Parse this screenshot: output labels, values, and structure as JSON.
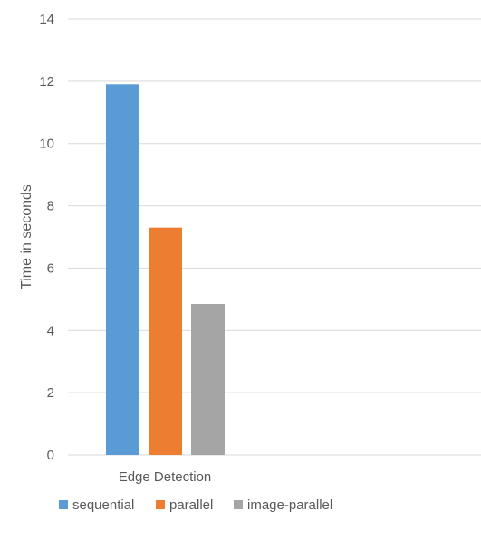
{
  "chart_data": {
    "type": "bar",
    "title": "",
    "xlabel": "",
    "ylabel": "Time in seconds",
    "ylim": [
      0,
      14
    ],
    "yticks": [
      0,
      2,
      4,
      6,
      8,
      10,
      12,
      14
    ],
    "grid": true,
    "legend_position": "bottom-left",
    "categories": [
      "Edge Detection"
    ],
    "series": [
      {
        "name": "sequential",
        "color": "#5b9bd5",
        "values": [
          11.9
        ]
      },
      {
        "name": "parallel",
        "color": "#ed7d31",
        "values": [
          7.3
        ]
      },
      {
        "name": "image-parallel",
        "color": "#a5a5a5",
        "values": [
          4.85
        ]
      }
    ]
  }
}
